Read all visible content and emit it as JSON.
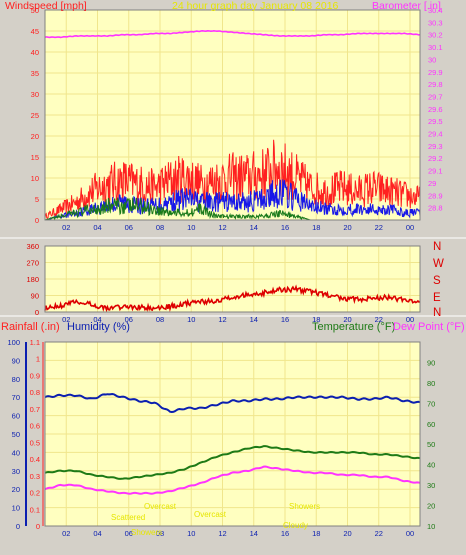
{
  "colors": {
    "wind_max": "#ff2020",
    "wind_avg": "#1818e8",
    "wind_low": "#1a7a1a",
    "barometer": "#ff33ff",
    "direction": "#dd0000",
    "humidity": "#0b1fb0",
    "temperature": "#1e7a16",
    "dew_point": "#ff33ff",
    "rainfall": "#ff2020",
    "plot_bg": "#ffffc0",
    "grid": "#f0e68c",
    "title": "#e6e600",
    "direction_labels": "#dd0000"
  },
  "header": {
    "title": "24 hour graph day   January 08 2016",
    "windspeed_label": "Windspeed [mph]",
    "barometer_label": "Barometer [.in]"
  },
  "middle": {
    "direction_labels": [
      "N",
      "W",
      "S",
      "E",
      "N"
    ]
  },
  "bottom_header": {
    "rainfall_label": "Rainfall (.in)",
    "humidity_label": "Humidity (%)",
    "temperature_label": "Temperature (°F)",
    "dew_point_label": "Dew Point (°F)"
  },
  "annotations": [
    "Overcast",
    "Scattered",
    "Showers",
    "Overcast",
    "Showers",
    "Cloudy"
  ],
  "chart_data": [
    {
      "id": "wind_baro",
      "type": "line",
      "x_ticks": [
        "02",
        "04",
        "06",
        "08",
        "10",
        "12",
        "14",
        "16",
        "18",
        "20",
        "22",
        "00"
      ],
      "y_left": {
        "label": "Windspeed [mph]",
        "lim": [
          0,
          50
        ],
        "ticks": [
          "0",
          "5",
          "10",
          "15",
          "20",
          "25",
          "30",
          "35",
          "40",
          "45",
          "50"
        ]
      },
      "y_right": {
        "label": "Barometer [.in]",
        "lim": [
          28.7,
          30.4
        ],
        "ticks": [
          "28.8",
          "28.9",
          "29",
          "29.1",
          "29.2",
          "29.3",
          "29.4",
          "29.5",
          "29.6",
          "29.7",
          "29.8",
          "29.9",
          "30",
          "30.1",
          "30.2",
          "30.3",
          "30.4"
        ]
      },
      "series": [
        {
          "name": "Barometer",
          "axis": "right",
          "x": [
            0,
            1,
            2,
            3,
            4,
            5,
            6,
            7,
            8,
            9,
            10,
            11,
            12,
            13,
            14,
            15,
            16,
            17,
            18,
            19,
            20,
            21,
            22,
            23,
            24
          ],
          "y": [
            30.18,
            30.18,
            30.19,
            30.19,
            30.19,
            30.2,
            30.2,
            30.21,
            30.21,
            30.22,
            30.23,
            30.23,
            30.22,
            30.21,
            30.2,
            30.19,
            30.19,
            30.19,
            30.2,
            30.2,
            30.21,
            30.21,
            30.21,
            30.21,
            30.2
          ]
        },
        {
          "name": "Wind gust",
          "axis": "left",
          "x": [
            0,
            1,
            2,
            3,
            4,
            5,
            6,
            7,
            8,
            9,
            10,
            11,
            12,
            13,
            14,
            15,
            16,
            17,
            18,
            19,
            20,
            21,
            22,
            23,
            24
          ],
          "y": [
            1,
            3,
            5,
            8,
            10,
            11,
            10,
            9,
            11,
            12,
            10,
            11,
            12,
            12,
            13,
            15,
            12,
            9,
            8,
            9,
            8,
            9,
            8,
            7,
            6
          ]
        },
        {
          "name": "Wind average",
          "axis": "left",
          "x": [
            0,
            1,
            2,
            3,
            4,
            5,
            6,
            7,
            8,
            9,
            10,
            11,
            12,
            13,
            14,
            15,
            16,
            17,
            18,
            19,
            20,
            21,
            22,
            23,
            24
          ],
          "y": [
            0,
            1,
            2,
            3,
            4,
            5,
            4,
            4,
            5,
            6,
            5,
            5,
            5,
            5,
            6,
            8,
            6,
            4,
            3,
            3,
            3,
            3,
            3,
            2,
            2
          ]
        },
        {
          "name": "Wind low",
          "axis": "left",
          "x": [
            0,
            1,
            2,
            3,
            4,
            5,
            6,
            7,
            8,
            9,
            10,
            11,
            12,
            13,
            14,
            15,
            16,
            17,
            18,
            19,
            20,
            21,
            22,
            23,
            24
          ],
          "y": [
            0,
            1,
            2,
            3,
            4,
            4,
            4,
            3,
            2,
            2,
            3,
            1,
            1,
            1,
            1,
            2,
            1,
            0,
            0,
            0,
            0,
            0,
            0,
            0,
            0
          ]
        }
      ]
    },
    {
      "id": "wind_direction",
      "type": "line",
      "x_ticks": [
        "02",
        "04",
        "06",
        "08",
        "10",
        "12",
        "14",
        "16",
        "18",
        "20",
        "22",
        "00"
      ],
      "y_left": {
        "lim": [
          0,
          360
        ],
        "ticks": [
          "0",
          "90",
          "180",
          "270",
          "360"
        ]
      },
      "series": [
        {
          "name": "Wind direction",
          "x": [
            0,
            1,
            2,
            3,
            4,
            5,
            6,
            7,
            8,
            9,
            10,
            11,
            12,
            13,
            14,
            15,
            16,
            17,
            18,
            19,
            20,
            21,
            22,
            23,
            24
          ],
          "y": [
            20,
            35,
            55,
            40,
            20,
            30,
            25,
            20,
            30,
            45,
            60,
            55,
            85,
            95,
            105,
            120,
            125,
            110,
            95,
            75,
            70,
            75,
            80,
            65,
            45
          ]
        }
      ]
    },
    {
      "id": "humidity_temp",
      "type": "line",
      "x_ticks": [
        "02",
        "04",
        "06",
        "08",
        "10",
        "12",
        "14",
        "16",
        "18",
        "20",
        "22",
        "00"
      ],
      "y_rain": {
        "label": "Rainfall (.in)",
        "lim": [
          0,
          1.1
        ],
        "ticks": [
          "0",
          "0.1",
          "0.2",
          "0.3",
          "0.4",
          "0.5",
          "0.6",
          "0.7",
          "0.8",
          "0.9",
          "1",
          "1.1"
        ]
      },
      "y_humidity": {
        "label": "Humidity (%)",
        "lim": [
          0,
          100
        ],
        "ticks": [
          "0",
          "10",
          "20",
          "30",
          "40",
          "50",
          "60",
          "70",
          "80",
          "90",
          "100"
        ]
      },
      "y_right": {
        "label": "Temperature (°F)",
        "lim": [
          10,
          100
        ],
        "ticks": [
          "10",
          "20",
          "30",
          "40",
          "50",
          "60",
          "70",
          "80",
          "90"
        ]
      },
      "series": [
        {
          "name": "Humidity",
          "axis": "humidity",
          "x": [
            0,
            1,
            2,
            3,
            4,
            5,
            6,
            7,
            8,
            9,
            10,
            11,
            12,
            13,
            14,
            15,
            16,
            17,
            18,
            19,
            20,
            21,
            22,
            23,
            24
          ],
          "y": [
            70,
            71,
            71,
            69,
            72,
            70,
            68,
            67,
            62,
            64,
            64,
            66,
            68,
            68,
            69,
            69,
            70,
            70,
            70,
            70,
            69,
            69,
            70,
            68,
            67
          ]
        },
        {
          "name": "Temperature",
          "axis": "right",
          "x": [
            0,
            1,
            2,
            3,
            4,
            5,
            6,
            7,
            8,
            9,
            10,
            11,
            12,
            13,
            14,
            15,
            16,
            17,
            18,
            19,
            20,
            21,
            22,
            23,
            24
          ],
          "y": [
            36,
            37,
            37,
            35,
            34,
            33,
            34,
            35,
            36,
            38,
            41,
            44,
            46,
            48,
            49,
            48,
            47,
            46,
            46,
            46,
            46,
            45,
            45,
            44,
            43
          ]
        },
        {
          "name": "Dew Point",
          "axis": "right",
          "x": [
            0,
            1,
            2,
            3,
            4,
            5,
            6,
            7,
            8,
            9,
            10,
            11,
            12,
            13,
            14,
            15,
            16,
            17,
            18,
            19,
            20,
            21,
            22,
            23,
            24
          ],
          "y": [
            28,
            30,
            30,
            28,
            27,
            26,
            26,
            26,
            27,
            29,
            31,
            34,
            36,
            37,
            39,
            38,
            37,
            36,
            36,
            35,
            35,
            34,
            34,
            32,
            31
          ]
        },
        {
          "name": "Rainfall",
          "axis": "rain",
          "x": [
            0,
            24
          ],
          "y": [
            0,
            0
          ]
        }
      ]
    }
  ]
}
